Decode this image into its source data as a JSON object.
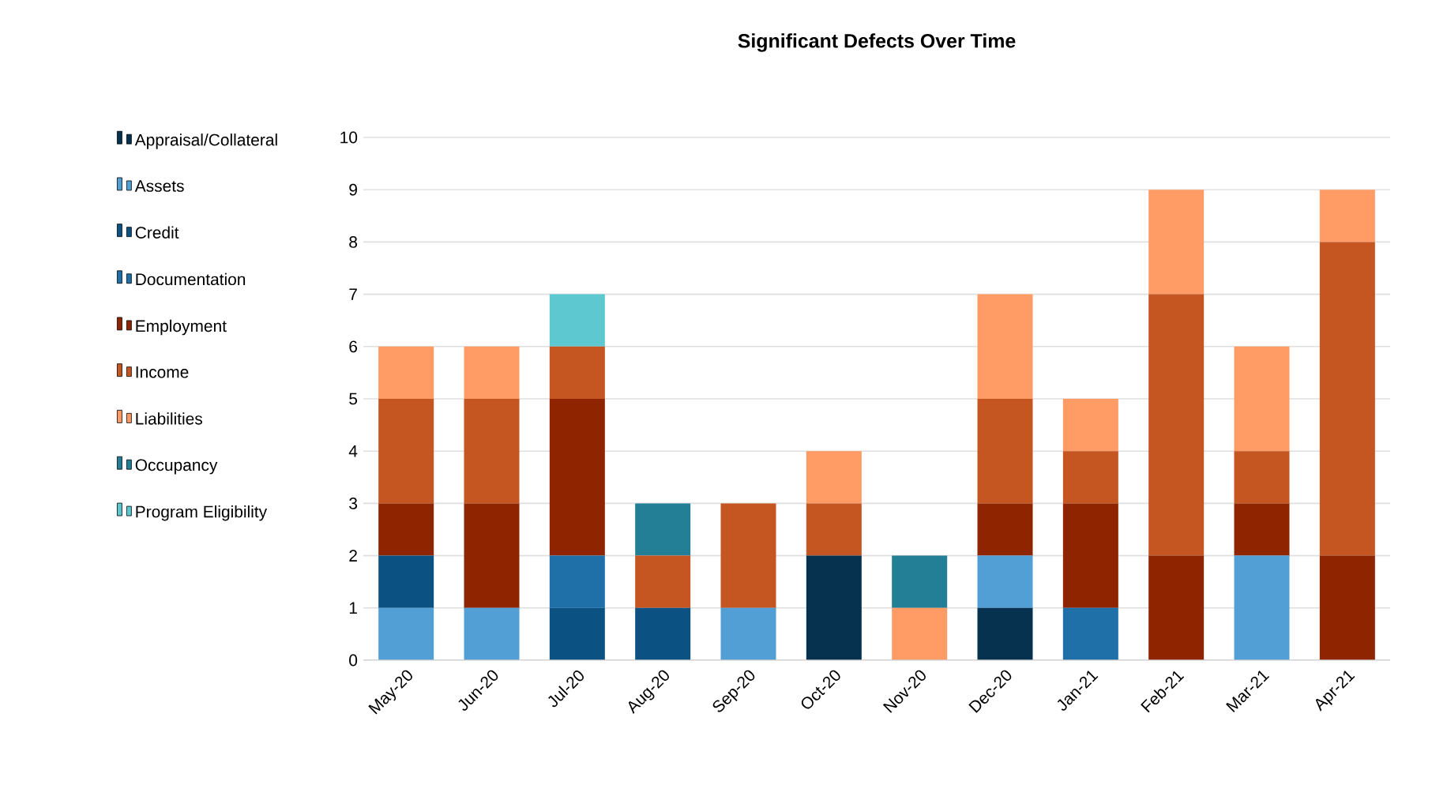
{
  "chart_data": {
    "type": "bar",
    "title": "Significant Defects Over Time",
    "stacked": true,
    "categories": [
      "May-20",
      "Jun-20",
      "Jul-20",
      "Aug-20",
      "Sep-20",
      "Oct-20",
      "Nov-20",
      "Dec-20",
      "Jan-21",
      "Feb-21",
      "Mar-21",
      "Apr-21"
    ],
    "series": [
      {
        "name": "Appraisal/Collateral",
        "color": "#06324f",
        "values": [
          0,
          0,
          0,
          0,
          0,
          2,
          0,
          1,
          0,
          0,
          0,
          0
        ]
      },
      {
        "name": "Assets",
        "color": "#529fd6",
        "values": [
          1,
          1,
          0,
          0,
          1,
          0,
          0,
          1,
          0,
          0,
          2,
          0
        ]
      },
      {
        "name": "Credit",
        "color": "#0b5282",
        "values": [
          1,
          0,
          1,
          1,
          0,
          0,
          0,
          0,
          0,
          0,
          0,
          0
        ]
      },
      {
        "name": "Documentation",
        "color": "#1f70a8",
        "values": [
          0,
          0,
          1,
          0,
          0,
          0,
          0,
          0,
          1,
          0,
          0,
          0
        ]
      },
      {
        "name": "Employment",
        "color": "#8f2500",
        "values": [
          1,
          2,
          3,
          0,
          0,
          0,
          0,
          1,
          2,
          2,
          1,
          2
        ]
      },
      {
        "name": "Income",
        "color": "#c55521",
        "values": [
          2,
          2,
          1,
          1,
          2,
          1,
          0,
          2,
          1,
          5,
          1,
          6
        ]
      },
      {
        "name": "Liabilities",
        "color": "#ff9c66",
        "values": [
          1,
          1,
          0,
          0,
          0,
          1,
          1,
          2,
          1,
          2,
          2,
          1
        ]
      },
      {
        "name": "Occupancy",
        "color": "#237f96",
        "values": [
          0,
          0,
          0,
          1,
          0,
          0,
          1,
          0,
          0,
          0,
          0,
          0
        ]
      },
      {
        "name": "Program Eligibility",
        "color": "#5ec8d1",
        "values": [
          0,
          0,
          1,
          0,
          0,
          0,
          0,
          0,
          0,
          0,
          0,
          0
        ]
      }
    ],
    "ylim": [
      0,
      10
    ],
    "yticks": [
      0,
      1,
      2,
      3,
      4,
      5,
      6,
      7,
      8,
      9,
      10
    ],
    "grid": "y",
    "legend": "left",
    "marker": "square"
  }
}
